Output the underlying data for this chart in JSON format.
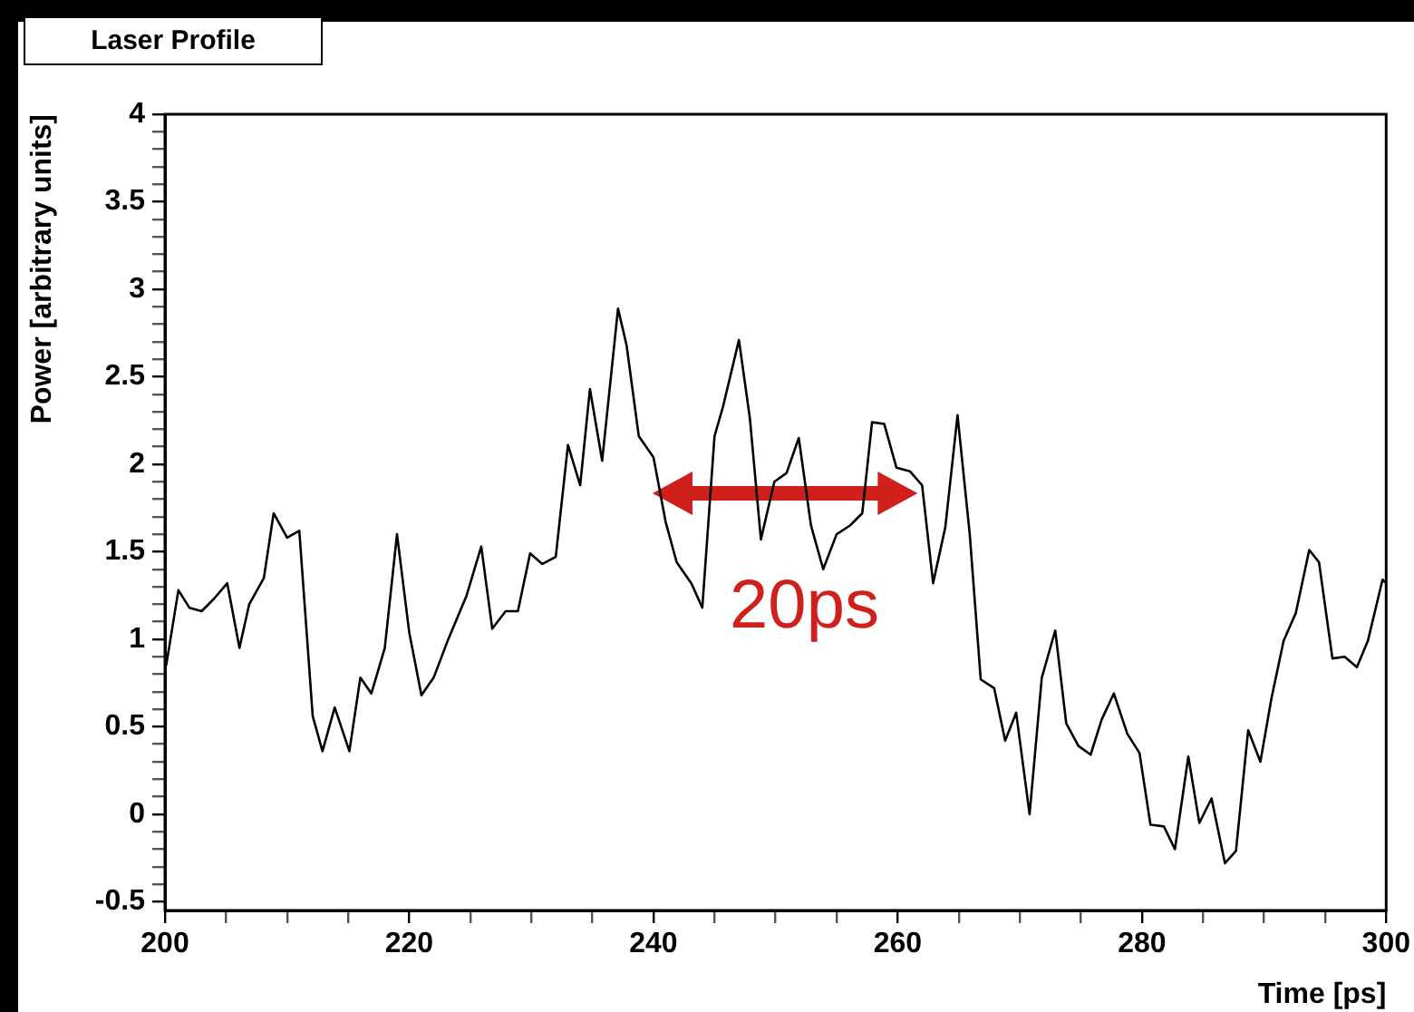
{
  "chart_data": {
    "type": "line",
    "title": "Laser Profile",
    "xlabel": "Time [ps]",
    "ylabel": "Power [arbitrary units]",
    "annotations": [
      "20ps"
    ],
    "xlim": [
      200,
      300
    ],
    "ylim": [
      -0.55,
      4
    ],
    "xticks": [
      200,
      {
        "value": 205,
        "label": null
      },
      {
        "value": 210,
        "label": null
      },
      {
        "value": 215,
        "label": null
      },
      220,
      {
        "value": 225,
        "label": null
      },
      {
        "value": 230,
        "label": null
      },
      {
        "value": 235,
        "label": null
      },
      240,
      {
        "value": 245,
        "label": null
      },
      {
        "value": 250,
        "label": null
      },
      {
        "value": 255,
        "label": null
      },
      260,
      {
        "value": 265,
        "label": null
      },
      {
        "value": 270,
        "label": null
      },
      {
        "value": 275,
        "label": null
      },
      280,
      {
        "value": 285,
        "label": null
      },
      {
        "value": 290,
        "label": null
      },
      {
        "value": 295,
        "label": null
      },
      300
    ],
    "yticks": [
      -0.5,
      {
        "value": -0.4,
        "label": null
      },
      {
        "value": -0.3,
        "label": null
      },
      {
        "value": -0.2,
        "label": null
      },
      {
        "value": -0.1,
        "label": null
      },
      0,
      {
        "value": 0.1,
        "label": null
      },
      {
        "value": 0.2,
        "label": null
      },
      {
        "value": 0.3,
        "label": null
      },
      {
        "value": 0.4,
        "label": null
      },
      0.5,
      {
        "value": 0.6,
        "label": null
      },
      {
        "value": 0.7,
        "label": null
      },
      {
        "value": 0.8,
        "label": null
      },
      {
        "value": 0.9,
        "label": null
      },
      1,
      {
        "value": 1.1,
        "label": null
      },
      {
        "value": 1.2,
        "label": null
      },
      {
        "value": 1.3,
        "label": null
      },
      {
        "value": 1.4,
        "label": null
      },
      1.5,
      {
        "value": 1.6,
        "label": null
      },
      {
        "value": 1.7,
        "label": null
      },
      {
        "value": 1.8,
        "label": null
      },
      {
        "value": 1.9,
        "label": null
      },
      2,
      {
        "value": 2.1,
        "label": null
      },
      {
        "value": 2.2,
        "label": null
      },
      {
        "value": 2.3,
        "label": null
      },
      {
        "value": 2.4,
        "label": null
      },
      2.5,
      {
        "value": 2.6,
        "label": null
      },
      {
        "value": 2.7,
        "label": null
      },
      {
        "value": 2.8,
        "label": null
      },
      {
        "value": 2.9,
        "label": null
      },
      3,
      {
        "value": 3.1,
        "label": null
      },
      {
        "value": 3.2,
        "label": null
      },
      {
        "value": 3.3,
        "label": null
      },
      {
        "value": 3.4,
        "label": null
      },
      3.5,
      {
        "value": 3.6,
        "label": null
      },
      {
        "value": 3.7,
        "label": null
      },
      {
        "value": 3.8,
        "label": null
      },
      {
        "value": 3.9,
        "label": null
      },
      4
    ],
    "grid": false,
    "legend": false,
    "marker": "none",
    "line_style": "solid",
    "series": [
      {
        "color": "#000000",
        "x": [
          200.1,
          201.1,
          202,
          203,
          204,
          205.1,
          206.1,
          206.9,
          208.1,
          208.9,
          210,
          211,
          212.1,
          212.9,
          213.9,
          215.1,
          216,
          216.9,
          218,
          219,
          220,
          221,
          222,
          223.2,
          224.7,
          225.9,
          226.8,
          227.9,
          228.9,
          229.9,
          230.9,
          232,
          233,
          234,
          234.8,
          235.8,
          237.1,
          237.8,
          238.8,
          240,
          241,
          241.9,
          243.1,
          244,
          245,
          245.7,
          247,
          247.9,
          248.8,
          249.9,
          250.9,
          251.9,
          252.9,
          253.9,
          255,
          256.1,
          257.1,
          257.9,
          258.9,
          259.9,
          261,
          262,
          262.9,
          263.9,
          264.9,
          265.9,
          266.8,
          267.9,
          268.8,
          269.7,
          270.8,
          271.8,
          272.9,
          273.8,
          274.8,
          275.8,
          276.7,
          277.7,
          278.8,
          279.8,
          280.7,
          281.8,
          282.7,
          283.8,
          284.7,
          285.7,
          286.8,
          287.7,
          288.7,
          289.7,
          290.6,
          291.6,
          292.6,
          293.7,
          294.5,
          295.6,
          296.6,
          297.6,
          298.5,
          299.7,
          300
        ],
        "values": [
          0.85,
          1.28,
          1.18,
          1.16,
          1.23,
          1.32,
          0.95,
          1.2,
          1.35,
          1.72,
          1.58,
          1.62,
          0.56,
          0.36,
          0.61,
          0.36,
          0.78,
          0.69,
          0.95,
          1.6,
          1.04,
          0.68,
          0.78,
          1.0,
          1.25,
          1.53,
          1.06,
          1.16,
          1.16,
          1.49,
          1.43,
          1.47,
          2.11,
          1.88,
          2.43,
          2.02,
          2.89,
          2.68,
          2.16,
          2.04,
          1.67,
          1.44,
          1.32,
          1.18,
          2.16,
          2.33,
          2.71,
          2.26,
          1.57,
          1.9,
          1.95,
          2.15,
          1.65,
          1.4,
          1.6,
          1.65,
          1.72,
          2.24,
          2.23,
          1.98,
          1.96,
          1.88,
          1.32,
          1.64,
          2.28,
          1.6,
          0.77,
          0.72,
          0.42,
          0.58,
          0.0,
          0.78,
          1.05,
          0.52,
          0.39,
          0.34,
          0.54,
          0.69,
          0.46,
          0.35,
          -0.06,
          -0.07,
          -0.2,
          0.33,
          -0.05,
          0.09,
          -0.28,
          -0.21,
          0.48,
          0.3,
          0.66,
          0.99,
          1.15,
          1.51,
          1.44,
          0.89,
          0.9,
          0.84,
          0.99,
          1.34,
          1.32
        ]
      }
    ]
  }
}
